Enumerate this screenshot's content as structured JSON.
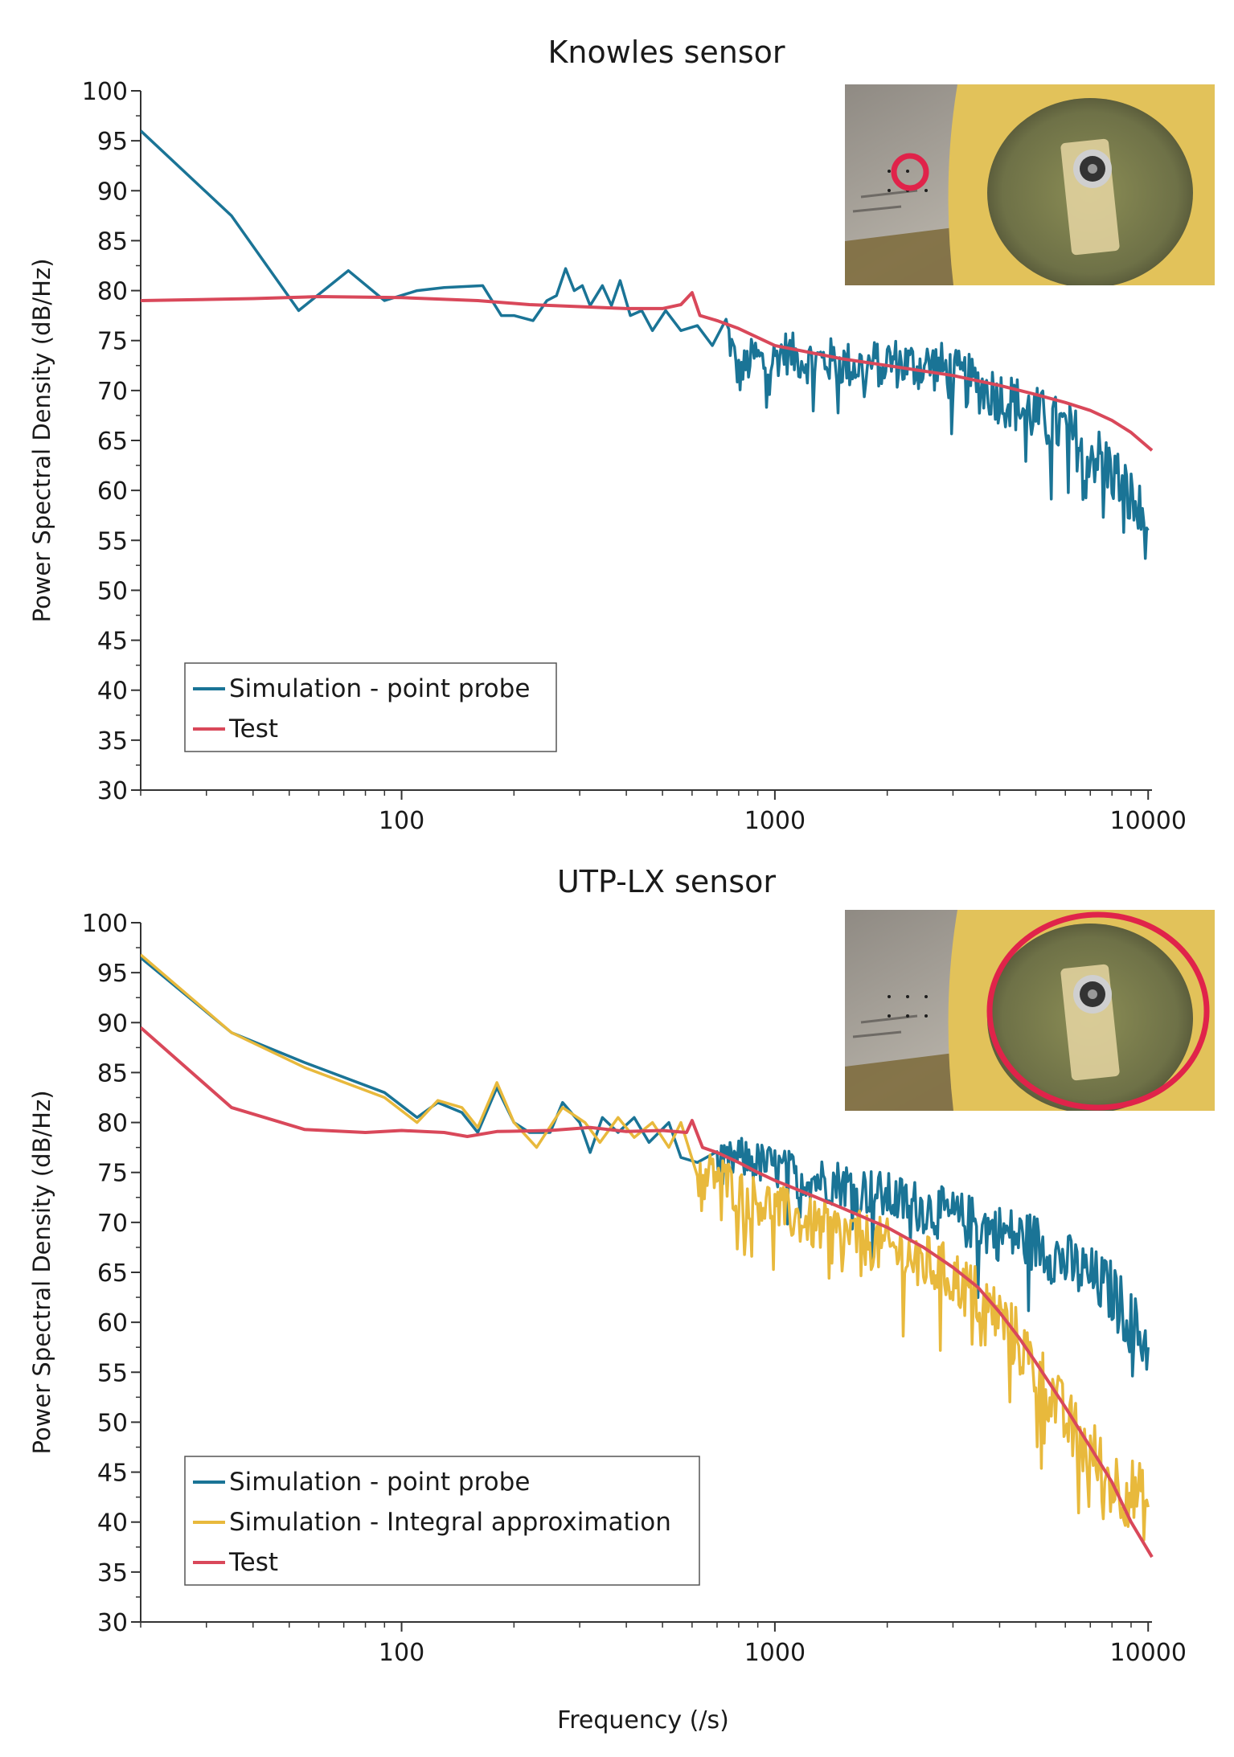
{
  "figure": {
    "xlabel": "Frequency (/s)"
  },
  "chart_data": [
    {
      "type": "line",
      "title": "Knowles sensor",
      "ylabel": "Power Spectral Density (dB/Hz)",
      "x_scale": "log",
      "xlim": [
        20,
        10240
      ],
      "ylim": [
        30,
        100
      ],
      "yticks": [
        30,
        35,
        40,
        45,
        50,
        55,
        60,
        65,
        70,
        75,
        80,
        85,
        90,
        95,
        100
      ],
      "xticks": [
        100,
        1000,
        10000
      ],
      "legend_position": "lower-left",
      "inset": {
        "description_icon": "sensor-photo",
        "highlight": "point-probe-circle"
      },
      "series": [
        {
          "name": "Simulation - point probe",
          "color": "#1a7496",
          "points": [
            [
              20,
              96
            ],
            [
              35,
              87.5
            ],
            [
              53,
              78
            ],
            [
              72,
              82
            ],
            [
              90,
              79
            ],
            [
              110,
              80
            ],
            [
              130,
              80.3
            ],
            [
              165,
              80.5
            ],
            [
              185,
              77.5
            ],
            [
              200,
              77.5
            ],
            [
              225,
              77
            ],
            [
              245,
              79
            ],
            [
              260,
              79.5
            ],
            [
              275,
              82.2
            ],
            [
              290,
              80
            ],
            [
              305,
              80.5
            ],
            [
              320,
              78.5
            ],
            [
              345,
              80.5
            ],
            [
              365,
              78.5
            ],
            [
              385,
              81
            ],
            [
              410,
              77.5
            ],
            [
              440,
              78
            ],
            [
              470,
              76
            ],
            [
              510,
              78
            ],
            [
              560,
              76
            ],
            [
              620,
              76.5
            ],
            [
              680,
              74.5
            ],
            [
              740,
              76.5
            ],
            [
              800,
              71.5
            ],
            [
              880,
              73.5
            ],
            [
              950,
              72.5
            ],
            [
              1050,
              74
            ],
            [
              1200,
              73
            ],
            [
              1400,
              73
            ],
            [
              1600,
              72.5
            ],
            [
              1800,
              72.5
            ],
            [
              2000,
              73
            ],
            [
              2300,
              72.5
            ],
            [
              2700,
              72.5
            ],
            [
              3000,
              71.5
            ],
            [
              3500,
              70.5
            ],
            [
              4000,
              69.5
            ],
            [
              4500,
              68.5
            ],
            [
              5000,
              67.5
            ],
            [
              6000,
              66
            ],
            [
              7000,
              64
            ],
            [
              8000,
              62
            ],
            [
              9000,
              59
            ],
            [
              10000,
              56
            ]
          ],
          "noise_from": 700,
          "noise_amp": 2.0
        },
        {
          "name": "Test",
          "color": "#d9485a",
          "points": [
            [
              20,
              79
            ],
            [
              40,
              79.2
            ],
            [
              60,
              79.4
            ],
            [
              100,
              79.3
            ],
            [
              160,
              79
            ],
            [
              220,
              78.6
            ],
            [
              300,
              78.4
            ],
            [
              400,
              78.2
            ],
            [
              500,
              78.2
            ],
            [
              560,
              78.6
            ],
            [
              600,
              79.8
            ],
            [
              630,
              77.5
            ],
            [
              700,
              77
            ],
            [
              800,
              76.2
            ],
            [
              1000,
              74.5
            ],
            [
              1500,
              73.2
            ],
            [
              2000,
              72.5
            ],
            [
              3000,
              71.5
            ],
            [
              4000,
              70.5
            ],
            [
              5000,
              69.6
            ],
            [
              6000,
              68.8
            ],
            [
              7000,
              68
            ],
            [
              8000,
              67
            ],
            [
              9000,
              65.8
            ],
            [
              10240,
              64
            ]
          ]
        }
      ]
    },
    {
      "type": "line",
      "title": "UTP-LX sensor",
      "ylabel": "Power Spectral Density (dB/Hz)",
      "xlabel": "Frequency (/s)",
      "x_scale": "log",
      "xlim": [
        20,
        10240
      ],
      "ylim": [
        30,
        100
      ],
      "yticks": [
        30,
        35,
        40,
        45,
        50,
        55,
        60,
        65,
        70,
        75,
        80,
        85,
        90,
        95,
        100
      ],
      "xticks": [
        100,
        1000,
        10000
      ],
      "legend_position": "lower-left",
      "inset": {
        "description_icon": "sensor-photo",
        "highlight": "integral-area-circle"
      },
      "series": [
        {
          "name": "Simulation - point probe",
          "color": "#1a7496",
          "points": [
            [
              20,
              96.5
            ],
            [
              35,
              89
            ],
            [
              55,
              86
            ],
            [
              90,
              83
            ],
            [
              110,
              80.5
            ],
            [
              125,
              82
            ],
            [
              145,
              81
            ],
            [
              160,
              79
            ],
            [
              180,
              83.5
            ],
            [
              200,
              80
            ],
            [
              220,
              79
            ],
            [
              250,
              79
            ],
            [
              270,
              82
            ],
            [
              300,
              80
            ],
            [
              320,
              77
            ],
            [
              345,
              80.5
            ],
            [
              380,
              79
            ],
            [
              420,
              80.5
            ],
            [
              460,
              78
            ],
            [
              520,
              80
            ],
            [
              560,
              76.5
            ],
            [
              620,
              76
            ],
            [
              700,
              75.5
            ],
            [
              800,
              76.5
            ],
            [
              1000,
              75.5
            ],
            [
              1200,
              74.5
            ],
            [
              1500,
              74
            ],
            [
              2000,
              72.5
            ],
            [
              2500,
              71.5
            ],
            [
              3000,
              70.5
            ],
            [
              3500,
              69.8
            ],
            [
              4000,
              69
            ],
            [
              5000,
              68
            ],
            [
              6000,
              66
            ],
            [
              7000,
              64.5
            ],
            [
              8000,
              63
            ],
            [
              9000,
              60
            ],
            [
              10000,
              57.5
            ]
          ],
          "noise_from": 700,
          "noise_amp": 2.0
        },
        {
          "name": "Simulation - Integral approximation",
          "color": "#e8b93c",
          "points": [
            [
              20,
              96.8
            ],
            [
              35,
              89
            ],
            [
              55,
              85.5
            ],
            [
              90,
              82.5
            ],
            [
              110,
              80
            ],
            [
              125,
              82.2
            ],
            [
              145,
              81.5
            ],
            [
              160,
              79.5
            ],
            [
              180,
              84
            ],
            [
              200,
              80
            ],
            [
              230,
              77.5
            ],
            [
              270,
              81.5
            ],
            [
              310,
              80
            ],
            [
              340,
              78
            ],
            [
              380,
              80.5
            ],
            [
              420,
              78.5
            ],
            [
              470,
              80
            ],
            [
              520,
              77.5
            ],
            [
              560,
              80
            ],
            [
              620,
              74.5
            ],
            [
              700,
              75
            ],
            [
              800,
              73
            ],
            [
              1000,
              71.5
            ],
            [
              1200,
              70
            ],
            [
              1500,
              69
            ],
            [
              2000,
              67.5
            ],
            [
              2500,
              66
            ],
            [
              3000,
              64.5
            ],
            [
              3500,
              62.5
            ],
            [
              4000,
              60.5
            ],
            [
              4500,
              58
            ],
            [
              5000,
              55
            ],
            [
              5500,
              53
            ],
            [
              6000,
              50
            ],
            [
              7000,
              47
            ],
            [
              8000,
              44
            ],
            [
              9000,
              43
            ],
            [
              10000,
              41.5
            ]
          ],
          "noise_from": 600,
          "noise_amp": 2.2
        },
        {
          "name": "Test",
          "color": "#d9485a",
          "points": [
            [
              20,
              89.5
            ],
            [
              35,
              81.5
            ],
            [
              55,
              79.3
            ],
            [
              80,
              79
            ],
            [
              100,
              79.2
            ],
            [
              130,
              79
            ],
            [
              150,
              78.6
            ],
            [
              180,
              79.1
            ],
            [
              250,
              79.2
            ],
            [
              320,
              79.5
            ],
            [
              400,
              79.1
            ],
            [
              500,
              79.2
            ],
            [
              580,
              79
            ],
            [
              600,
              80.2
            ],
            [
              640,
              77.5
            ],
            [
              700,
              77
            ],
            [
              800,
              76
            ],
            [
              900,
              75
            ],
            [
              1000,
              74.2
            ],
            [
              1200,
              73
            ],
            [
              1500,
              71.5
            ],
            [
              2000,
              69.5
            ],
            [
              2500,
              67.5
            ],
            [
              3000,
              65.5
            ],
            [
              3500,
              63.5
            ],
            [
              4000,
              61
            ],
            [
              4500,
              58.5
            ],
            [
              5000,
              56
            ],
            [
              6000,
              51.5
            ],
            [
              7000,
              47.5
            ],
            [
              8000,
              44
            ],
            [
              9000,
              40
            ],
            [
              10240,
              36.5
            ]
          ]
        }
      ]
    }
  ]
}
